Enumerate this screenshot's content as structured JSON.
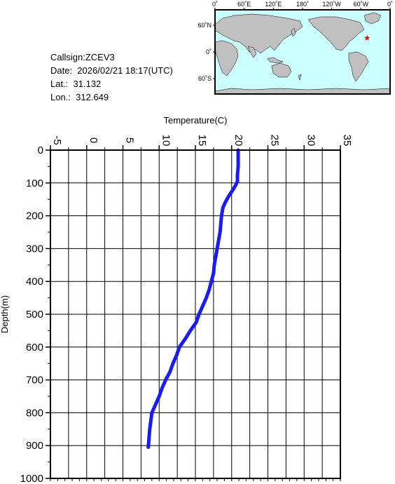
{
  "info": {
    "callsign": "Callsign:ZCEV3",
    "date": "Date:  2026/02/21 18:17(UTC)",
    "lat": "Lat.:  31.132",
    "lon": "Lon.:  312.649"
  },
  "map": {
    "top_labels": [
      "0˚",
      "60˚E",
      "120˚E",
      "180˚",
      "120˚W",
      "60˚W",
      "0˚"
    ],
    "left_labels": [
      "60˚N",
      "0˚",
      "60˚S"
    ],
    "ocean_color": "#ccffff",
    "land_color": "#c0c0c0",
    "marker_color": "#ff0000",
    "marker_icon": "star-icon",
    "marker_lat": 31.132,
    "marker_lon": 312.649
  },
  "chart_data": {
    "type": "line",
    "xlabel": "Temperature(C)",
    "ylabel": "Depth(m)",
    "xlim": [
      -5,
      35
    ],
    "ylim": [
      0,
      1000
    ],
    "y_inverted": true,
    "x_ticks": [
      "-5",
      "0",
      "5",
      "10",
      "15",
      "20",
      "25",
      "30",
      "35"
    ],
    "y_ticks": [
      "0",
      "100",
      "200",
      "300",
      "400",
      "500",
      "600",
      "700",
      "800",
      "900",
      "1000"
    ],
    "grid": true,
    "line_color": "#1a1aff",
    "series": [
      {
        "x": [
          20.9,
          20.9,
          20.9,
          20.8,
          20.8,
          20.6,
          20.2,
          19.6,
          19.1,
          18.8,
          18.6,
          18.5,
          18.4,
          18.2,
          18.0,
          17.8,
          17.6,
          17.5,
          17.2,
          16.9,
          16.5,
          16.0,
          15.5,
          15.1,
          14.3,
          13.6,
          12.8,
          12.4,
          11.9,
          11.5,
          10.9,
          10.4,
          10.0,
          9.5,
          9.0,
          8.7,
          8.5
        ],
        "y": [
          0,
          25,
          50,
          75,
          95,
          105,
          120,
          140,
          160,
          175,
          200,
          225,
          250,
          275,
          300,
          325,
          350,
          375,
          400,
          425,
          450,
          475,
          500,
          525,
          550,
          575,
          600,
          625,
          650,
          675,
          700,
          725,
          750,
          775,
          800,
          850,
          905
        ]
      }
    ]
  }
}
